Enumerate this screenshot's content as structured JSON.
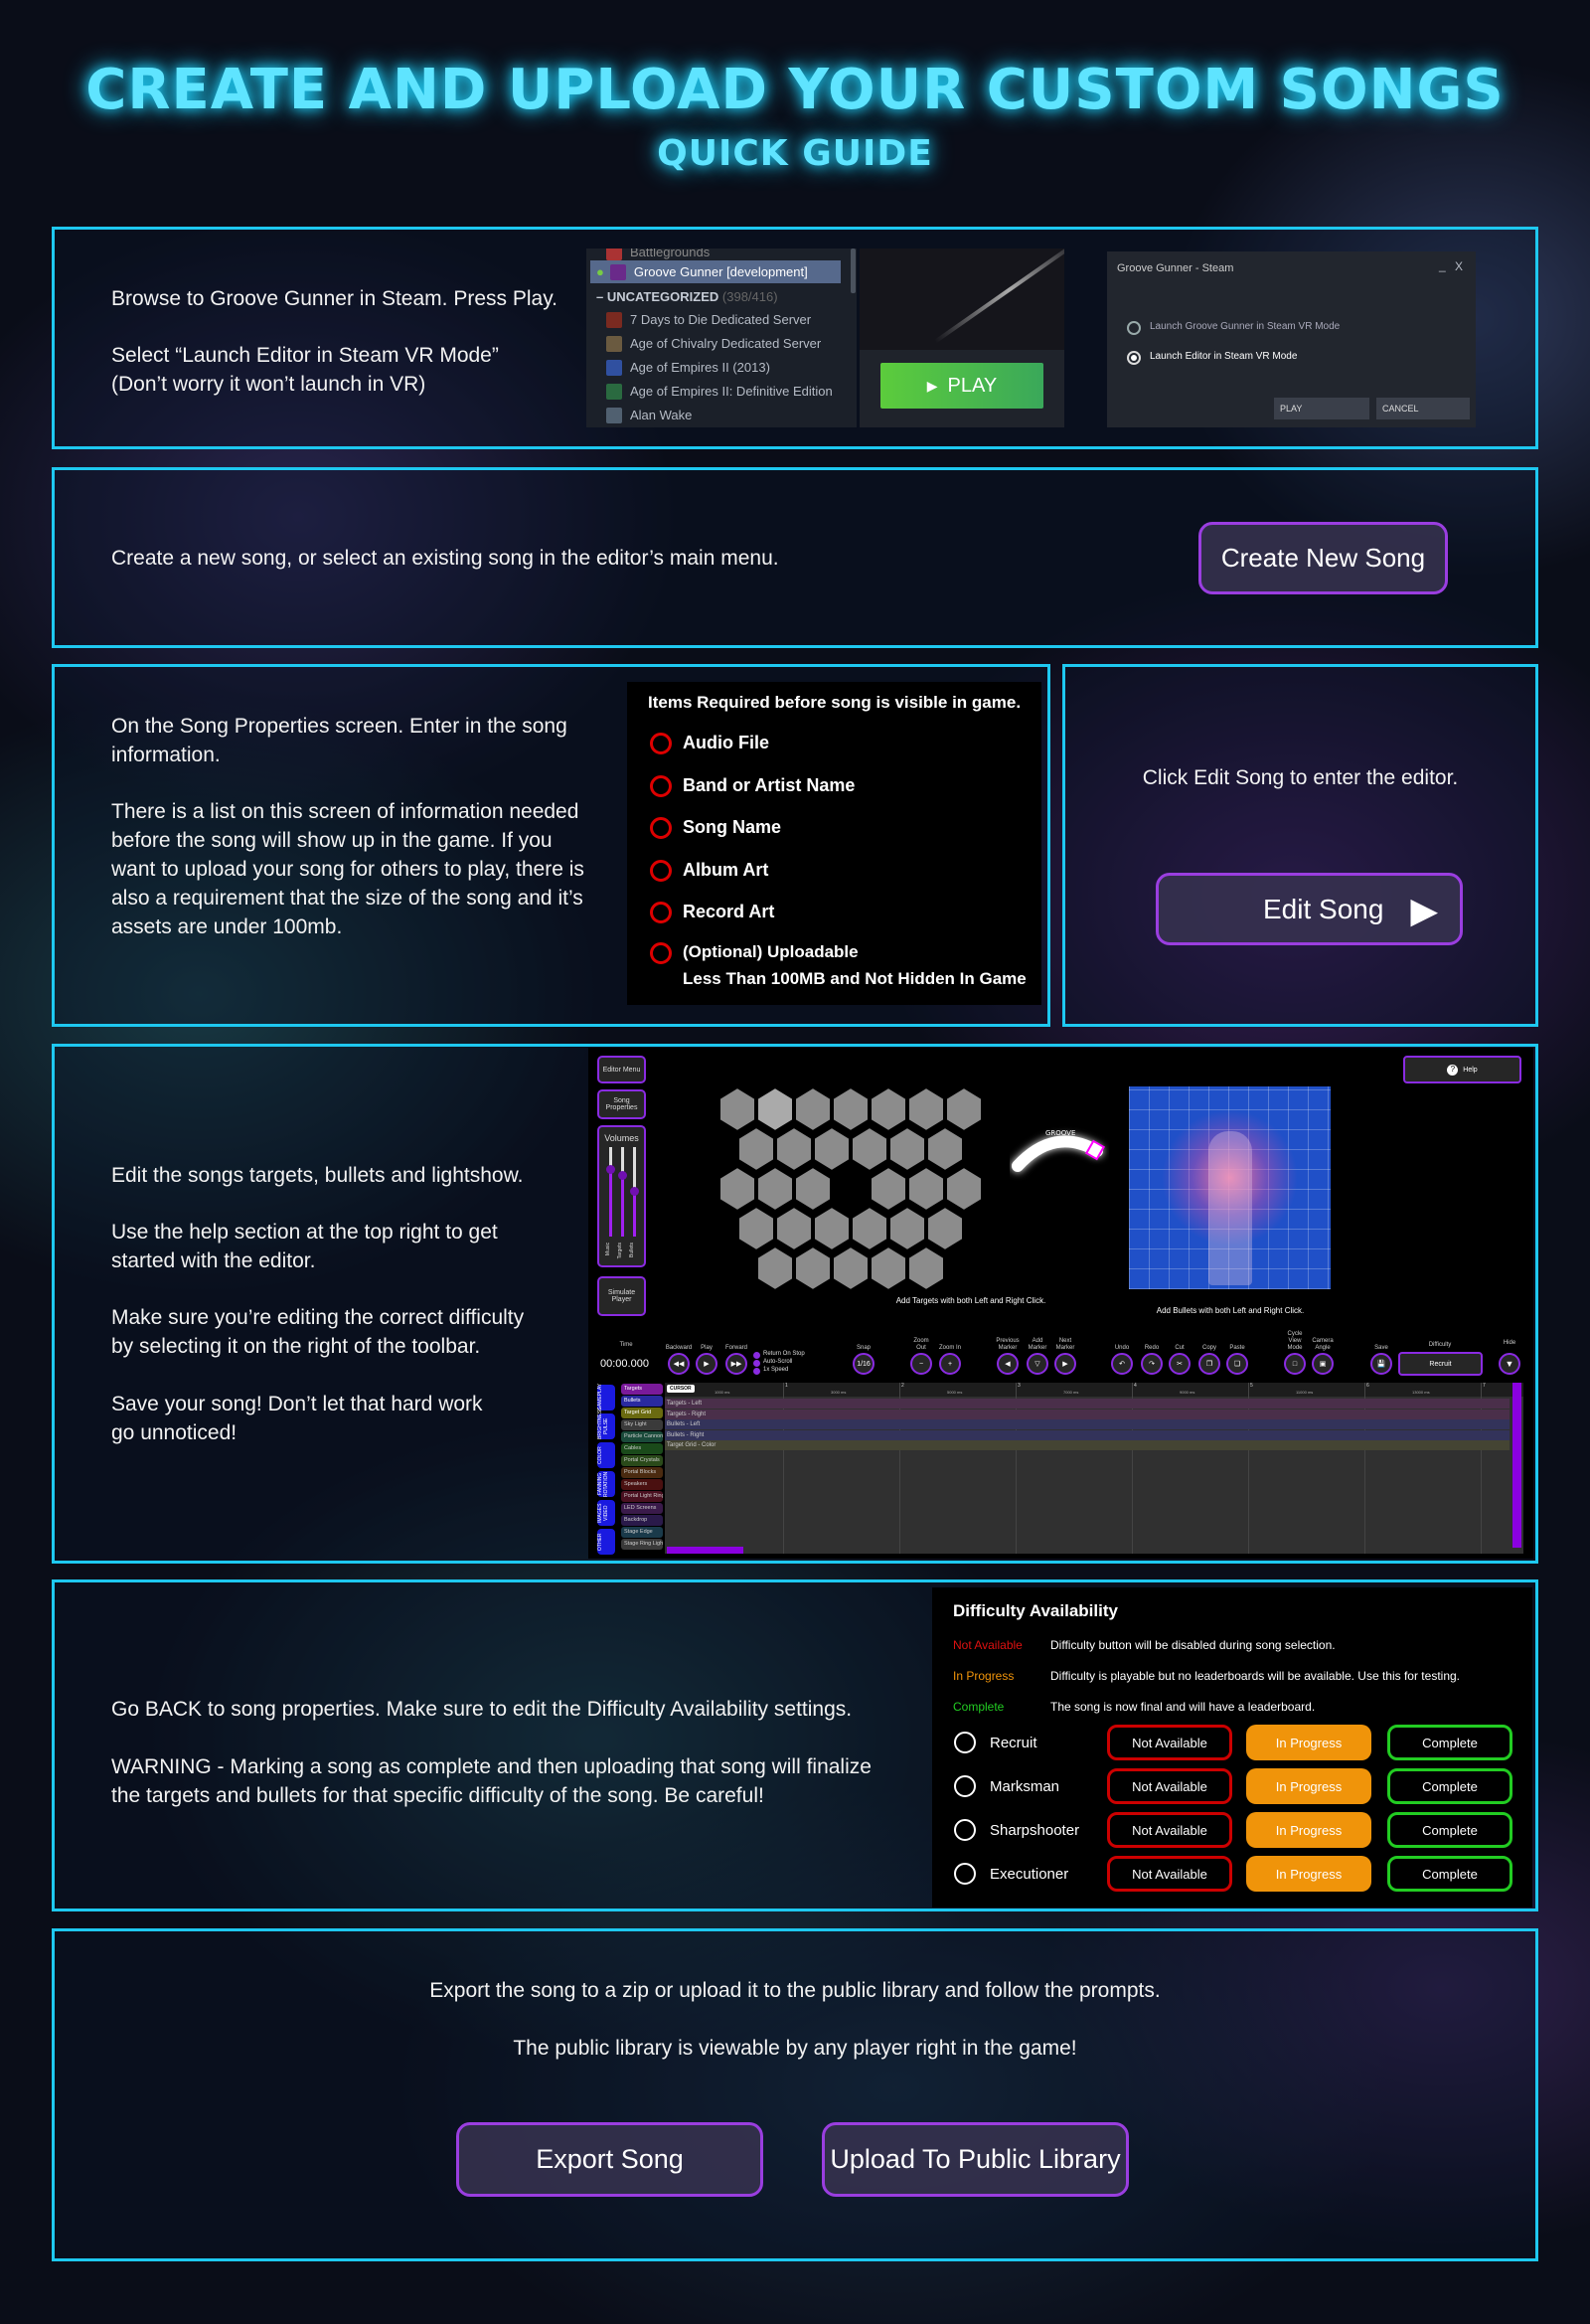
{
  "header": {
    "title": "CREATE AND UPLOAD YOUR CUSTOM SONGS",
    "subtitle": "QUICK GUIDE"
  },
  "step1": {
    "line1": "Browse to Groove Gunner in Steam.  Press Play.",
    "line2": "Select “Launch Editor in Steam VR Mode”",
    "line3": "(Don’t worry it won’t launch in VR)",
    "library": {
      "partial_item": "Battlegrounds",
      "selected_item": "Groove Gunner [development]",
      "category": "UNCATEGORIZED",
      "category_count": "(398/416)",
      "items": [
        "7 Days to Die Dedicated Server",
        "Age of Chivalry Dedicated Server",
        "Age of Empires II (2013)",
        "Age of Empires II: Definitive Edition",
        "Alan Wake"
      ],
      "play_label": "PLAY"
    },
    "dialog": {
      "title": "Groove Gunner - Steam",
      "option1": "Launch Groove Gunner in Steam VR Mode",
      "option2": "Launch Editor in Steam VR Mode",
      "selected": "option2",
      "play": "PLAY",
      "cancel": "CANCEL",
      "minimize": "_",
      "close": "X"
    }
  },
  "step2": {
    "text": "Create a new song, or select an existing song in the editor’s main menu.",
    "button": "Create New Song"
  },
  "step3": {
    "para1": [
      "On the Song Properties screen.  Enter in the song",
      "information."
    ],
    "para2": [
      "There is a list on this screen of information needed",
      "before the song will show up in the game.  If you",
      "want to upload your song for others to play, there is",
      "also a requirement that the size of the song and it’s",
      "assets are under 100mb."
    ],
    "required": {
      "title": "Items Required before song is visible in game.",
      "items": [
        "Audio File",
        "Band or Artist Name",
        "Song Name",
        "Album Art",
        "Record Art"
      ],
      "optional_1": "(Optional) Uploadable",
      "optional_2": "Less Than 100MB and Not Hidden In Game"
    },
    "edit_text": "Click Edit Song to enter the editor.",
    "edit_button": "Edit Song"
  },
  "step4": {
    "lines": [
      "Edit the songs targets, bullets and lightshow.",
      "Use the help section at the top right to get",
      "started with the editor.",
      "Make sure you’re editing the correct difficulty",
      "by selecting it on the right of the toolbar.",
      "Save your song!  Don’t let that hard work",
      "go unnoticed!"
    ],
    "editor": {
      "editor_menu": "Editor Menu",
      "song_properties": "Song Properties",
      "volumes": "Volumes",
      "sliders": [
        {
          "label": "Music",
          "level": 0.75
        },
        {
          "label": "Targets",
          "level": 0.68
        },
        {
          "label": "Bullets",
          "level": 0.5
        }
      ],
      "simulate": "Simulate Player",
      "help": "Help",
      "groove": "GROOVE",
      "targets_caption": "Add Targets with both Left and Right Click.",
      "bullets_caption": "Add Bullets with both Left and Right Click.",
      "time_label": "Time",
      "time": "00:00.000",
      "toolbar": [
        "Backward",
        "Play",
        "Forward",
        "Snap",
        "Zoom Out",
        "Zoom In",
        "Previous Marker",
        "Add Marker",
        "Next Marker",
        "Undo",
        "Redo",
        "Cut",
        "Copy",
        "Paste",
        "Cycle View Mode",
        "Camera Angle",
        "Save"
      ],
      "toggles": [
        "Return On Stop",
        "Auto-Scroll",
        "1x Speed"
      ],
      "snap": "1/16",
      "difficulty_label": "Difficulty",
      "difficulty": "Recruit",
      "hide": "Hide",
      "categories": [
        "GAMEPLAY",
        "BRIGHTNESS PULSE",
        "COLOR",
        "FANNING ROTATION",
        "IMAGES VIDEO",
        "OTHER"
      ],
      "subtabs": [
        "Targets",
        "Bullets",
        "Target Grid",
        "Sky Light",
        "Particle Cannons",
        "Cables",
        "Portal Crystals",
        "Portal Blocks",
        "Speakers",
        "Portal Light Ring",
        "LED Screens",
        "Backdrop",
        "Stage Edge",
        "Stage Ring Light"
      ],
      "cursor": "CURSOR",
      "beats": [
        "1",
        "2",
        "3",
        "4",
        "5",
        "6",
        "7"
      ],
      "ms": [
        "1000 ms",
        "3000 ms",
        "5000 ms",
        "7000 ms",
        "9000 ms",
        "11000 ms",
        "13000 ms"
      ],
      "lanes": [
        "Targets - Left",
        "Targets - Right",
        "Bullets - Left",
        "Bullets - Right",
        "Target Grid - Color"
      ]
    }
  },
  "step5": {
    "line1": "Go BACK to song properties.  Make sure to edit the Difficulty Availability settings.",
    "line2": "WARNING - Marking a song as complete and then uploading that song will finalize",
    "line3": "the targets and bullets for that specific difficulty of the song.  Be careful!",
    "panel": {
      "title": "Difficulty Availability",
      "legend": [
        {
          "label": "Not Available",
          "desc": "Difficulty button will be disabled during song selection.",
          "color": "#e01010"
        },
        {
          "label": "In Progress",
          "desc": "Difficulty is playable but no leaderboards will be available.  Use this for testing.",
          "color": "#f0940a"
        },
        {
          "label": "Complete",
          "desc": "The song is now final and will have a leaderboard.",
          "color": "#22cc22"
        }
      ],
      "difficulties": [
        "Recruit",
        "Marksman",
        "Sharpshooter",
        "Executioner"
      ],
      "options": [
        "Not Available",
        "In Progress",
        "Complete"
      ],
      "selected": "In Progress"
    }
  },
  "step6": {
    "line1": "Export the song to a zip or upload it to the public library and follow the prompts.",
    "line2": "The public library is viewable by any player right in the game!",
    "export": "Export Song",
    "upload": "Upload To Public Library"
  },
  "colors": {
    "accent": "#1ec8f0",
    "button_border": "#9a3ee0",
    "steam_play": "#4cc43a",
    "editor_purple": "#8a2be2"
  }
}
